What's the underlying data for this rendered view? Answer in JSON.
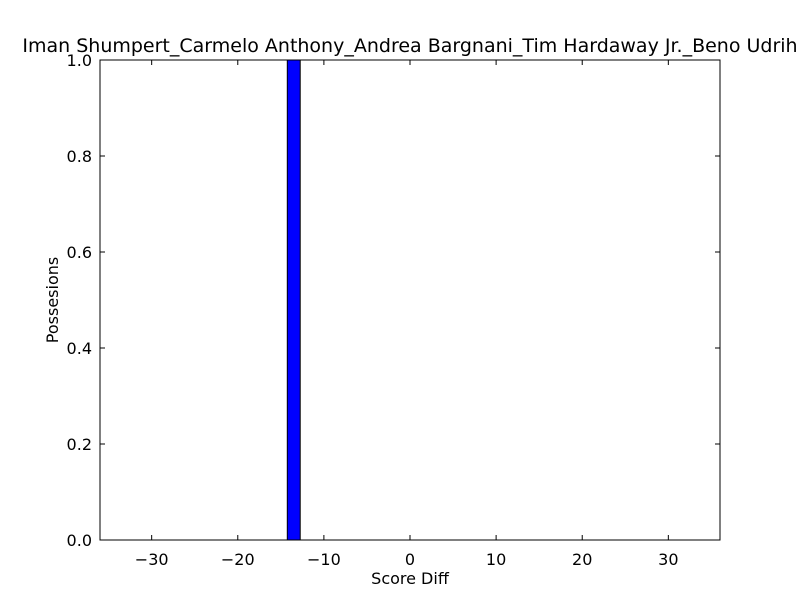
{
  "chart_data": {
    "type": "bar",
    "title": "Iman Shumpert_Carmelo Anthony_Andrea Bargnani_Tim Hardaway Jr._Beno Udrih",
    "xlabel": "Score Diff",
    "ylabel": "Possesions",
    "xlim": [
      -36,
      36
    ],
    "ylim": [
      0,
      1.0
    ],
    "x_ticks": [
      -30,
      -20,
      -10,
      0,
      10,
      20,
      30
    ],
    "x_tick_labels": [
      "−30",
      "−20",
      "−10",
      "0",
      "10",
      "20",
      "30"
    ],
    "y_ticks": [
      0.0,
      0.2,
      0.4,
      0.6,
      0.8,
      1.0
    ],
    "y_tick_labels": [
      "0.0",
      "0.2",
      "0.4",
      "0.6",
      "0.8",
      "1.0"
    ],
    "bin_width": 1.5,
    "bars": [
      {
        "x": -13.5,
        "value": 1.0
      }
    ],
    "bar_color": "#0000ff",
    "edge_color": "#000000",
    "grid": false
  }
}
